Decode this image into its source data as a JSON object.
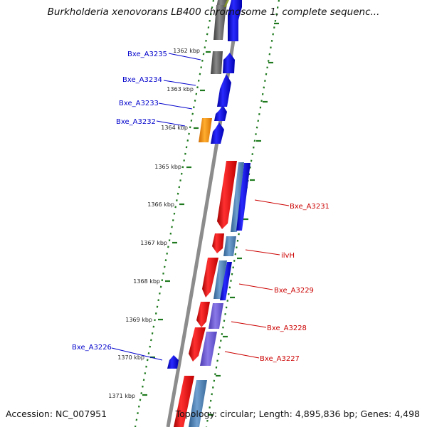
{
  "title": "Burkholderia xenovorans LB400 chromosome 1, complete sequenc...",
  "footer": {
    "accession": "Accession: NC_007951",
    "summary": "Topology: circular; Length: 4,895,836 bp; Genes: 4,498"
  },
  "ruler_ticks": [
    "1362 kbp",
    "1363 kbp",
    "1364 kbp",
    "1365 kbp",
    "1366 kbp",
    "1367 kbp",
    "1368 kbp",
    "1369 kbp",
    "1370 kbp",
    "1371 kbp"
  ],
  "genes": [
    {
      "name": "Bxe_A3235",
      "strand": "forward",
      "color": "#0000cc"
    },
    {
      "name": "Bxe_A3234",
      "strand": "forward",
      "color": "#0000cc"
    },
    {
      "name": "Bxe_A3233",
      "strand": "forward",
      "color": "#0000cc"
    },
    {
      "name": "Bxe_A3232",
      "strand": "forward",
      "color": "#0000cc"
    },
    {
      "name": "Bxe_A3231",
      "strand": "reverse",
      "color": "#cc0000"
    },
    {
      "name": "ilvH",
      "strand": "reverse",
      "color": "#cc0000"
    },
    {
      "name": "Bxe_A3229",
      "strand": "reverse",
      "color": "#cc0000"
    },
    {
      "name": "Bxe_A3228",
      "strand": "reverse",
      "color": "#cc0000"
    },
    {
      "name": "Bxe_A3227",
      "strand": "reverse",
      "color": "#cc0000"
    },
    {
      "name": "Bxe_A3226",
      "strand": "forward",
      "color": "#0000cc"
    }
  ]
}
